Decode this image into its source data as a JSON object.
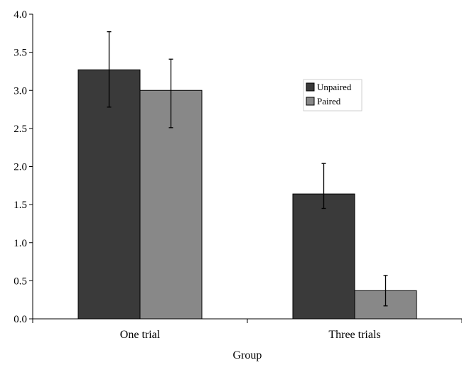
{
  "chart_data": {
    "type": "bar",
    "title": "",
    "xlabel": "Group",
    "ylabel": "",
    "categories": [
      "One trial",
      "Three trials"
    ],
    "series": [
      {
        "name": "Unpaired",
        "color": "#3a3a3a",
        "values": [
          3.27,
          1.64
        ],
        "error_low": [
          2.78,
          1.45
        ],
        "error_high": [
          3.77,
          2.04
        ]
      },
      {
        "name": "Paired",
        "color": "#888888",
        "values": [
          3.0,
          0.37
        ],
        "error_low": [
          2.51,
          0.17
        ],
        "error_high": [
          3.41,
          0.57
        ]
      }
    ],
    "ylim": [
      0,
      4.0
    ],
    "yticks": [
      "0.0",
      "0.5",
      "1.0",
      "1.5",
      "2.0",
      "2.5",
      "3.0",
      "3.5",
      "4.0"
    ],
    "grid": false,
    "legend_position": "top-right"
  }
}
